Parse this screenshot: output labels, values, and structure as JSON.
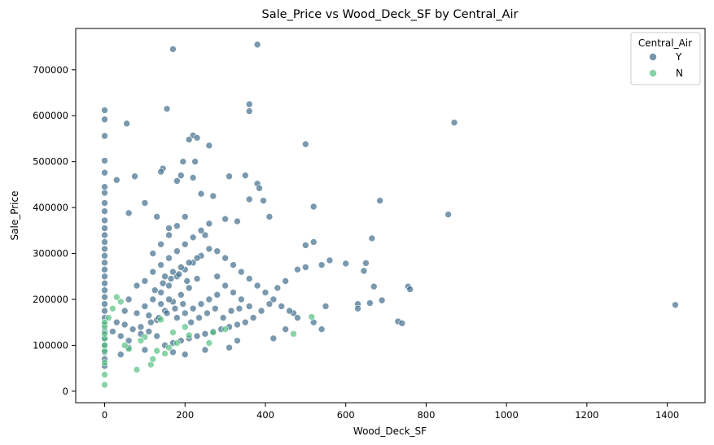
{
  "chart_data": {
    "type": "scatter",
    "title": "Sale_Price vs Wood_Deck_SF by Central_Air",
    "xlabel": "Wood_Deck_SF",
    "ylabel": "Sale_Price",
    "xlim": [
      -72,
      1494
    ],
    "ylim": [
      -25000,
      790000
    ],
    "xticks": [
      0,
      200,
      400,
      600,
      800,
      1000,
      1200,
      1400
    ],
    "yticks": [
      0,
      100000,
      200000,
      300000,
      400000,
      500000,
      600000,
      700000
    ],
    "grid": false,
    "legend": {
      "title": "Central_Air",
      "placement": "top-right"
    },
    "series": [
      {
        "name": "Y",
        "color": "#3b6887",
        "points": [
          [
            0,
            612000
          ],
          [
            0,
            592000
          ],
          [
            0,
            556000
          ],
          [
            0,
            502000
          ],
          [
            0,
            476000
          ],
          [
            0,
            445000
          ],
          [
            0,
            432000
          ],
          [
            0,
            410000
          ],
          [
            0,
            392000
          ],
          [
            0,
            372000
          ],
          [
            0,
            355000
          ],
          [
            0,
            340000
          ],
          [
            0,
            325000
          ],
          [
            0,
            310000
          ],
          [
            0,
            295000
          ],
          [
            0,
            280000
          ],
          [
            0,
            265000
          ],
          [
            0,
            250000
          ],
          [
            0,
            235000
          ],
          [
            0,
            220000
          ],
          [
            0,
            205000
          ],
          [
            0,
            190000
          ],
          [
            0,
            175000
          ],
          [
            0,
            160000
          ],
          [
            0,
            145000
          ],
          [
            0,
            130000
          ],
          [
            0,
            115000
          ],
          [
            0,
            100000
          ],
          [
            0,
            85000
          ],
          [
            0,
            70000
          ],
          [
            0,
            55000
          ],
          [
            170,
            745000
          ],
          [
            380,
            755000
          ],
          [
            155,
            615000
          ],
          [
            360,
            625000
          ],
          [
            360,
            610000
          ],
          [
            870,
            585000
          ],
          [
            55,
            583000
          ],
          [
            220,
            557000
          ],
          [
            230,
            552000
          ],
          [
            500,
            538000
          ],
          [
            260,
            535000
          ],
          [
            210,
            548000
          ],
          [
            195,
            500000
          ],
          [
            225,
            500000
          ],
          [
            145,
            485000
          ],
          [
            140,
            478000
          ],
          [
            190,
            470000
          ],
          [
            310,
            468000
          ],
          [
            350,
            470000
          ],
          [
            75,
            468000
          ],
          [
            30,
            460000
          ],
          [
            180,
            458000
          ],
          [
            220,
            465000
          ],
          [
            380,
            452000
          ],
          [
            385,
            442000
          ],
          [
            685,
            415000
          ],
          [
            855,
            385000
          ],
          [
            520,
            402000
          ],
          [
            100,
            410000
          ],
          [
            240,
            430000
          ],
          [
            270,
            425000
          ],
          [
            360,
            418000
          ],
          [
            395,
            415000
          ],
          [
            410,
            380000
          ],
          [
            60,
            388000
          ],
          [
            130,
            380000
          ],
          [
            300,
            375000
          ],
          [
            330,
            370000
          ],
          [
            160,
            355000
          ],
          [
            250,
            340000
          ],
          [
            665,
            333000
          ],
          [
            500,
            318000
          ],
          [
            520,
            325000
          ],
          [
            560,
            285000
          ],
          [
            600,
            278000
          ],
          [
            650,
            279000
          ],
          [
            645,
            262000
          ],
          [
            670,
            228000
          ],
          [
            755,
            228000
          ],
          [
            760,
            222000
          ],
          [
            690,
            198000
          ],
          [
            660,
            192000
          ],
          [
            630,
            190000
          ],
          [
            630,
            180000
          ],
          [
            730,
            152000
          ],
          [
            740,
            148000
          ],
          [
            1420,
            188000
          ],
          [
            550,
            185000
          ],
          [
            470,
            170000
          ],
          [
            480,
            160000
          ],
          [
            520,
            150000
          ],
          [
            540,
            135000
          ],
          [
            450,
            135000
          ],
          [
            420,
            115000
          ],
          [
            330,
            110000
          ],
          [
            310,
            95000
          ],
          [
            250,
            90000
          ],
          [
            200,
            80000
          ],
          [
            170,
            85000
          ],
          [
            100,
            90000
          ],
          [
            60,
            95000
          ],
          [
            40,
            80000
          ],
          [
            90,
            140000
          ],
          [
            110,
            165000
          ],
          [
            130,
            155000
          ],
          [
            150,
            175000
          ],
          [
            170,
            195000
          ],
          [
            190,
            210000
          ],
          [
            210,
            225000
          ],
          [
            230,
            245000
          ],
          [
            120,
            260000
          ],
          [
            140,
            275000
          ],
          [
            160,
            290000
          ],
          [
            180,
            305000
          ],
          [
            200,
            320000
          ],
          [
            220,
            335000
          ],
          [
            240,
            350000
          ],
          [
            260,
            365000
          ],
          [
            280,
            305000
          ],
          [
            300,
            290000
          ],
          [
            320,
            275000
          ],
          [
            340,
            260000
          ],
          [
            360,
            245000
          ],
          [
            380,
            230000
          ],
          [
            400,
            215000
          ],
          [
            420,
            200000
          ],
          [
            440,
            185000
          ],
          [
            460,
            175000
          ],
          [
            480,
            265000
          ],
          [
            500,
            270000
          ],
          [
            540,
            275000
          ],
          [
            450,
            240000
          ],
          [
            430,
            225000
          ],
          [
            410,
            190000
          ],
          [
            390,
            175000
          ],
          [
            370,
            160000
          ],
          [
            350,
            150000
          ],
          [
            330,
            145000
          ],
          [
            310,
            140000
          ],
          [
            290,
            135000
          ],
          [
            270,
            130000
          ],
          [
            250,
            125000
          ],
          [
            230,
            120000
          ],
          [
            210,
            115000
          ],
          [
            190,
            110000
          ],
          [
            170,
            105000
          ],
          [
            150,
            100000
          ],
          [
            130,
            120000
          ],
          [
            110,
            130000
          ],
          [
            90,
            125000
          ],
          [
            70,
            135000
          ],
          [
            50,
            145000
          ],
          [
            30,
            150000
          ],
          [
            20,
            130000
          ],
          [
            40,
            120000
          ],
          [
            60,
            110000
          ],
          [
            80,
            170000
          ],
          [
            100,
            185000
          ],
          [
            120,
            200000
          ],
          [
            140,
            215000
          ],
          [
            160,
            230000
          ],
          [
            180,
            250000
          ],
          [
            200,
            265000
          ],
          [
            220,
            280000
          ],
          [
            240,
            295000
          ],
          [
            260,
            310000
          ],
          [
            280,
            250000
          ],
          [
            300,
            230000
          ],
          [
            320,
            215000
          ],
          [
            340,
            200000
          ],
          [
            360,
            185000
          ],
          [
            120,
            300000
          ],
          [
            140,
            320000
          ],
          [
            160,
            340000
          ],
          [
            180,
            360000
          ],
          [
            200,
            380000
          ],
          [
            100,
            240000
          ],
          [
            80,
            230000
          ],
          [
            60,
            200000
          ],
          [
            50,
            175000
          ],
          [
            140,
            190000
          ],
          [
            160,
            200000
          ],
          [
            180,
            160000
          ],
          [
            200,
            170000
          ],
          [
            220,
            180000
          ],
          [
            240,
            190000
          ],
          [
            260,
            200000
          ],
          [
            280,
            210000
          ],
          [
            150,
            250000
          ],
          [
            170,
            260000
          ],
          [
            190,
            270000
          ],
          [
            210,
            280000
          ],
          [
            230,
            290000
          ],
          [
            125,
            220000
          ],
          [
            145,
            235000
          ],
          [
            165,
            245000
          ],
          [
            185,
            255000
          ],
          [
            205,
            240000
          ],
          [
            115,
            150000
          ],
          [
            135,
            160000
          ],
          [
            155,
            170000
          ],
          [
            175,
            180000
          ],
          [
            195,
            190000
          ],
          [
            215,
            150000
          ],
          [
            235,
            160000
          ],
          [
            255,
            170000
          ],
          [
            275,
            180000
          ],
          [
            295,
            160000
          ],
          [
            315,
            175000
          ],
          [
            335,
            180000
          ]
        ]
      },
      {
        "name": "N",
        "color": "#50c07f",
        "points": [
          [
            0,
            14000
          ],
          [
            0,
            36000
          ],
          [
            0,
            62000
          ],
          [
            0,
            88000
          ],
          [
            0,
            100000
          ],
          [
            0,
            115000
          ],
          [
            0,
            125000
          ],
          [
            0,
            140000
          ],
          [
            0,
            150000
          ],
          [
            80,
            47000
          ],
          [
            115,
            58000
          ],
          [
            120,
            70000
          ],
          [
            150,
            82000
          ],
          [
            160,
            95000
          ],
          [
            180,
            105000
          ],
          [
            60,
            92000
          ],
          [
            100,
            118000
          ],
          [
            210,
            122000
          ],
          [
            260,
            105000
          ],
          [
            270,
            128000
          ],
          [
            470,
            125000
          ],
          [
            515,
            162000
          ],
          [
            40,
            195000
          ],
          [
            30,
            205000
          ],
          [
            50,
            100000
          ],
          [
            90,
            110000
          ],
          [
            130,
            88000
          ],
          [
            170,
            128000
          ],
          [
            200,
            140000
          ],
          [
            140,
            156000
          ],
          [
            300,
            135000
          ],
          [
            20,
            180000
          ],
          [
            10,
            160000
          ]
        ]
      }
    ]
  }
}
